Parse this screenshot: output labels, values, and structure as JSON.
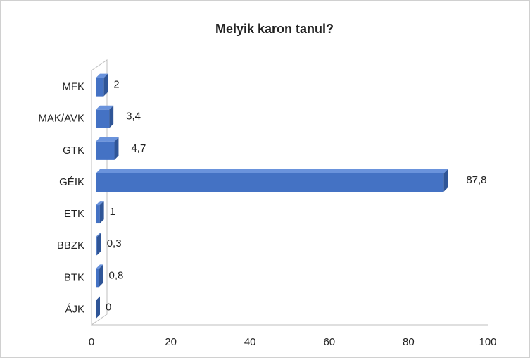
{
  "chart_data": {
    "type": "bar",
    "orientation": "horizontal",
    "title": "Melyik karon tanul?",
    "categories": [
      "MFK",
      "MAK/AVK",
      "GTK",
      "GÉIK",
      "ETK",
      "BBZK",
      "BTK",
      "ÁJK"
    ],
    "values": [
      2,
      3.4,
      4.7,
      87.8,
      1,
      0.3,
      0.8,
      0
    ],
    "value_labels": [
      "2",
      "3,4",
      "4,7",
      "87,8",
      "1",
      "0,3",
      "0,8",
      "0"
    ],
    "color": "#4472c4",
    "xlim": [
      0,
      100
    ],
    "xticks": [
      0,
      20,
      40,
      60,
      80,
      100
    ],
    "grid": false
  }
}
